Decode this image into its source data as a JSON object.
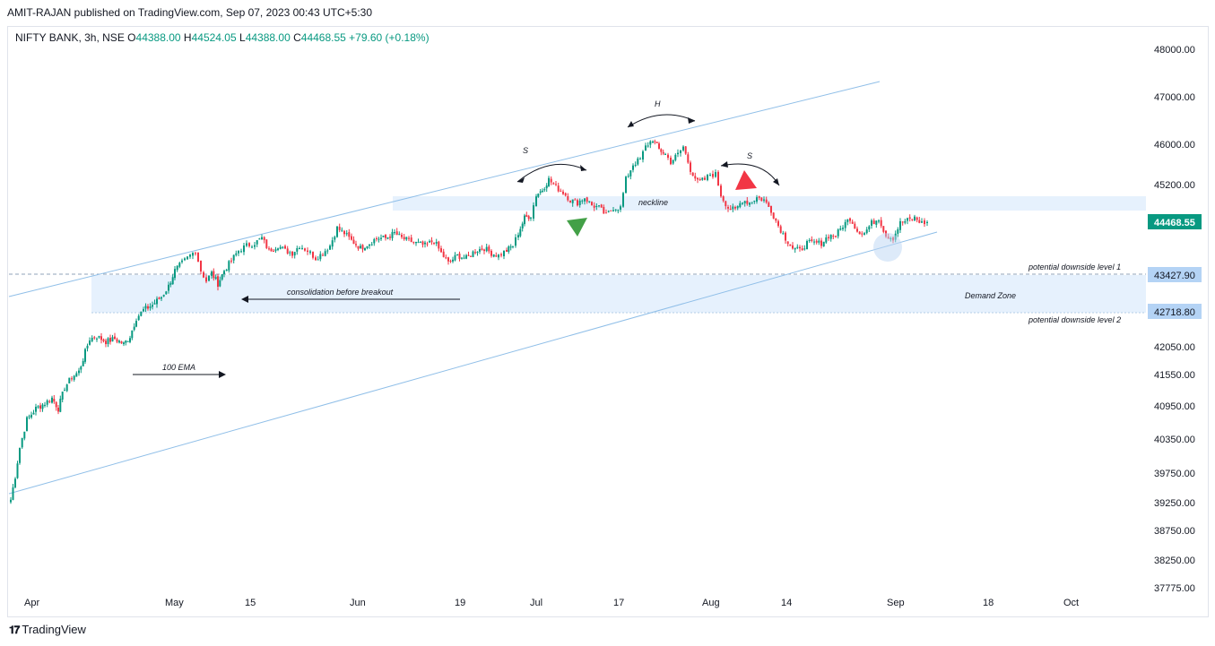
{
  "header": {
    "publisher": "AMIT-RAJAN published on TradingView.com, Sep 07, 2023 00:43 UTC+5:30"
  },
  "legend": {
    "symbol": "NIFTY BANK, 3h, NSE",
    "o_label": "O",
    "o": "44388.00",
    "h_label": "H",
    "h": "44524.05",
    "l_label": "L",
    "l": "44388.00",
    "c_label": "C",
    "c": "44468.55",
    "change": "+79.60 (+0.18%)"
  },
  "footer": {
    "brand": "TradingView"
  },
  "colors": {
    "up": "#089981",
    "down": "#f23645",
    "trendline": "#90bfe8",
    "zone": "#e3f0fd",
    "label_bg": "#b4d3f5",
    "last_price_bg": "#089981"
  },
  "chart_data": {
    "type": "candlestick",
    "y_ticks": [
      "48000.00",
      "47000.00",
      "46000.00",
      "45200.00",
      "42050.00",
      "41550.00",
      "40950.00",
      "40350.00",
      "39750.00",
      "39250.00",
      "38750.00",
      "38250.00",
      "37775.00"
    ],
    "x_ticks": [
      "Apr",
      "May",
      "15",
      "Jun",
      "19",
      "Jul",
      "17",
      "Aug",
      "14",
      "Sep",
      "18",
      "Oct"
    ],
    "price_labels": {
      "last": "44468.55",
      "level1": "43427.90",
      "level2": "42718.80"
    },
    "annotations": {
      "shoulder_left": "S",
      "head": "H",
      "shoulder_right": "S",
      "neckline": "neckline",
      "consolidation": "consolidation before breakout",
      "ema": "100 EMA",
      "demand_zone": "Demand Zone",
      "level1": "potential downside level 1",
      "level2": "potential downside level 2"
    },
    "close_path": [
      [
        12,
        39300
      ],
      [
        17,
        39700
      ],
      [
        22,
        40200
      ],
      [
        30,
        40700
      ],
      [
        40,
        40900
      ],
      [
        50,
        41000
      ],
      [
        58,
        41100
      ],
      [
        65,
        40900
      ],
      [
        72,
        41300
      ],
      [
        80,
        41500
      ],
      [
        88,
        41600
      ],
      [
        95,
        41950
      ],
      [
        100,
        42200
      ],
      [
        108,
        42250
      ],
      [
        118,
        42150
      ],
      [
        128,
        42200
      ],
      [
        138,
        42100
      ],
      [
        145,
        42250
      ],
      [
        152,
        42600
      ],
      [
        160,
        42750
      ],
      [
        170,
        42850
      ],
      [
        180,
        43000
      ],
      [
        188,
        43200
      ],
      [
        195,
        43500
      ],
      [
        203,
        43650
      ],
      [
        212,
        43800
      ],
      [
        218,
        43900
      ],
      [
        224,
        43500
      ],
      [
        230,
        43300
      ],
      [
        236,
        43450
      ],
      [
        243,
        43250
      ],
      [
        250,
        43500
      ],
      [
        258,
        43700
      ],
      [
        266,
        43900
      ],
      [
        275,
        44000
      ],
      [
        284,
        44050
      ],
      [
        292,
        44150
      ],
      [
        300,
        43900
      ],
      [
        310,
        44000
      ],
      [
        318,
        43900
      ],
      [
        326,
        43850
      ],
      [
        334,
        44000
      ],
      [
        343,
        43900
      ],
      [
        352,
        43750
      ],
      [
        360,
        43850
      ],
      [
        368,
        44000
      ],
      [
        376,
        44350
      ],
      [
        384,
        44250
      ],
      [
        392,
        44100
      ],
      [
        402,
        43950
      ],
      [
        412,
        44050
      ],
      [
        420,
        44150
      ],
      [
        430,
        44150
      ],
      [
        440,
        44250
      ],
      [
        448,
        44150
      ],
      [
        456,
        44100
      ],
      [
        464,
        44050
      ],
      [
        474,
        44000
      ],
      [
        484,
        44100
      ],
      [
        492,
        43850
      ],
      [
        500,
        43650
      ],
      [
        510,
        43800
      ],
      [
        520,
        43750
      ],
      [
        530,
        43900
      ],
      [
        540,
        43950
      ],
      [
        548,
        43850
      ],
      [
        556,
        43800
      ],
      [
        565,
        43900
      ],
      [
        572,
        44000
      ],
      [
        578,
        44250
      ],
      [
        585,
        44550
      ],
      [
        592,
        44600
      ],
      [
        598,
        45000
      ],
      [
        605,
        45100
      ],
      [
        612,
        45300
      ],
      [
        620,
        45150
      ],
      [
        628,
        45050
      ],
      [
        636,
        44900
      ],
      [
        644,
        44850
      ],
      [
        652,
        44950
      ],
      [
        660,
        44800
      ],
      [
        668,
        44750
      ],
      [
        676,
        44600
      ],
      [
        684,
        44750
      ],
      [
        692,
        44750
      ],
      [
        698,
        45300
      ],
      [
        706,
        45600
      ],
      [
        714,
        45700
      ],
      [
        720,
        45950
      ],
      [
        728,
        46100
      ],
      [
        735,
        45900
      ],
      [
        742,
        45800
      ],
      [
        748,
        45650
      ],
      [
        756,
        45800
      ],
      [
        762,
        45950
      ],
      [
        770,
        45500
      ],
      [
        778,
        45250
      ],
      [
        786,
        45300
      ],
      [
        792,
        45400
      ],
      [
        798,
        45400
      ],
      [
        804,
        45000
      ],
      [
        812,
        44750
      ],
      [
        820,
        44700
      ],
      [
        828,
        44900
      ],
      [
        836,
        44850
      ],
      [
        844,
        44950
      ],
      [
        852,
        44900
      ],
      [
        860,
        44700
      ],
      [
        868,
        44400
      ],
      [
        876,
        44150
      ],
      [
        884,
        43950
      ],
      [
        892,
        43900
      ],
      [
        900,
        44050
      ],
      [
        908,
        44050
      ],
      [
        916,
        44050
      ],
      [
        924,
        44200
      ],
      [
        932,
        44200
      ],
      [
        940,
        44400
      ],
      [
        948,
        44550
      ],
      [
        956,
        44300
      ],
      [
        964,
        44250
      ],
      [
        972,
        44450
      ],
      [
        980,
        44550
      ],
      [
        988,
        44200
      ],
      [
        996,
        44150
      ],
      [
        1004,
        44450
      ],
      [
        1012,
        44500
      ],
      [
        1020,
        44550
      ],
      [
        1028,
        44450
      ],
      [
        1034,
        44470
      ]
    ]
  }
}
